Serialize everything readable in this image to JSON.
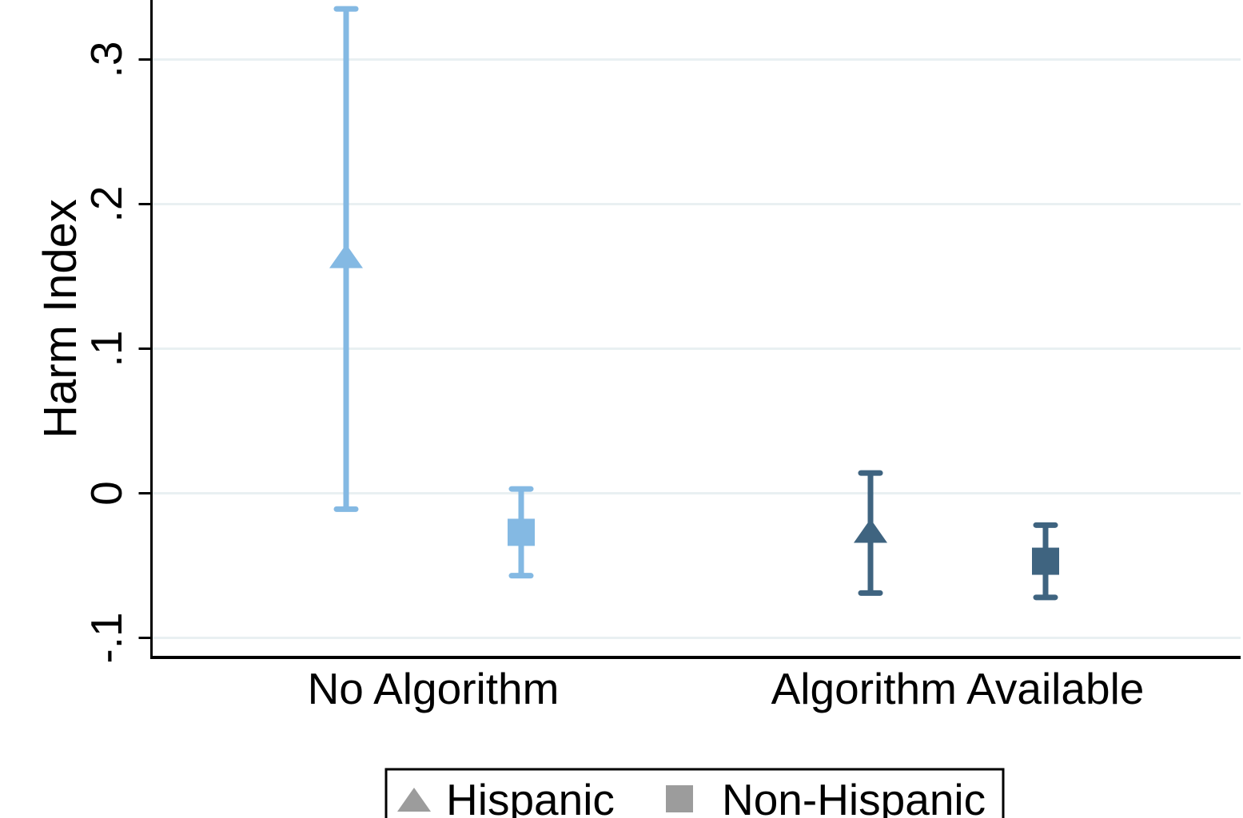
{
  "chart_data": {
    "type": "scatter",
    "subtype": "coefficient-dot-whisker",
    "title": "",
    "xlabel": "",
    "ylabel": "Harm Index",
    "categories": [
      "No Algorithm",
      "Algorithm Available"
    ],
    "category_colors": [
      "#84b9e3",
      "#3f6480"
    ],
    "yticks": [
      {
        "value": 0.3,
        "label": ".3"
      },
      {
        "value": 0.2,
        "label": ".2"
      },
      {
        "value": 0.1,
        "label": ".1"
      },
      {
        "value": 0.0,
        "label": "0"
      },
      {
        "value": -0.1,
        "label": "-.1"
      }
    ],
    "ylim": [
      -0.113,
      0.341
    ],
    "grid": true,
    "gridline_color": "#e9f0f2",
    "axis_color": "#000000",
    "series": [
      {
        "name": "Hispanic",
        "marker": "triangle",
        "points": [
          {
            "category": "No Algorithm",
            "estimate": 0.164,
            "ci_low": -0.011,
            "ci_high": 0.335
          },
          {
            "category": "Algorithm Available",
            "estimate": -0.026,
            "ci_low": -0.069,
            "ci_high": 0.014
          }
        ]
      },
      {
        "name": "Non-Hispanic",
        "marker": "square",
        "points": [
          {
            "category": "No Algorithm",
            "estimate": -0.027,
            "ci_low": -0.057,
            "ci_high": 0.003
          },
          {
            "category": "Algorithm Available",
            "estimate": -0.047,
            "ci_low": -0.072,
            "ci_high": -0.022
          }
        ]
      }
    ],
    "legend": {
      "position": "bottom",
      "marker_color": "#9c9c9c",
      "border_color": "#000000",
      "items": [
        {
          "label": "Hispanic",
          "marker": "triangle"
        },
        {
          "label": "Non-Hispanic",
          "marker": "square"
        }
      ]
    }
  }
}
